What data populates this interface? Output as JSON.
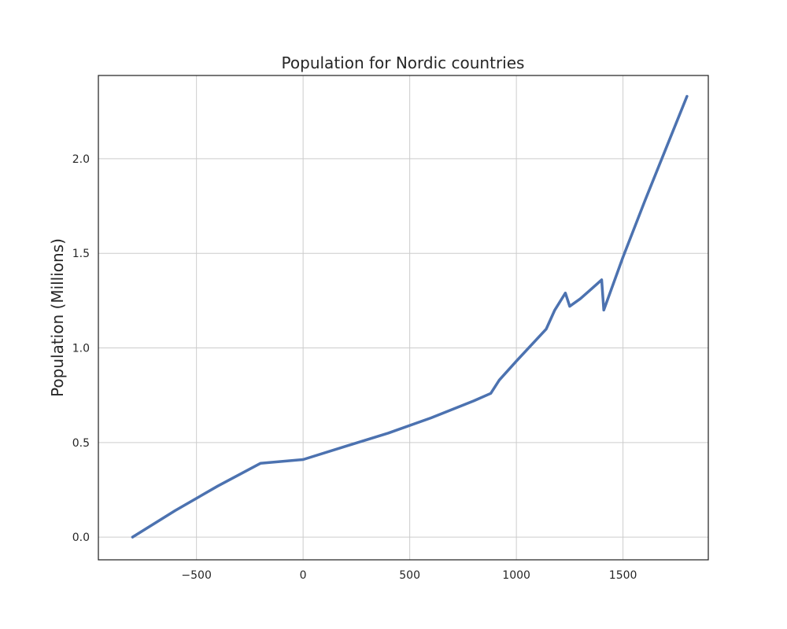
{
  "chart_data": {
    "type": "line",
    "title": "Population for Nordic countries",
    "xlabel": "",
    "ylabel": "Population (Millions)",
    "xlim": [
      -960,
      1900
    ],
    "ylim": [
      -0.12,
      2.44
    ],
    "xticks": [
      -500,
      0,
      500,
      1000,
      1500
    ],
    "xtick_labels": [
      "−500",
      "0",
      "500",
      "1000",
      "1500"
    ],
    "yticks": [
      0.0,
      0.5,
      1.0,
      1.5,
      2.0
    ],
    "ytick_labels": [
      "0.0",
      "0.5",
      "1.0",
      "1.5",
      "2.0"
    ],
    "grid": true,
    "series": [
      {
        "color": "#4c72b0",
        "x": [
          -800,
          -600,
          -400,
          -200,
          0,
          200,
          400,
          600,
          800,
          880,
          920,
          1000,
          1140,
          1180,
          1230,
          1250,
          1300,
          1350,
          1400,
          1410,
          1500,
          1600,
          1700,
          1800
        ],
        "y": [
          0.0,
          0.14,
          0.27,
          0.39,
          0.41,
          0.48,
          0.55,
          0.63,
          0.72,
          0.76,
          0.83,
          0.93,
          1.1,
          1.2,
          1.29,
          1.22,
          1.26,
          1.31,
          1.36,
          1.2,
          1.48,
          1.77,
          2.05,
          2.33
        ]
      }
    ]
  }
}
